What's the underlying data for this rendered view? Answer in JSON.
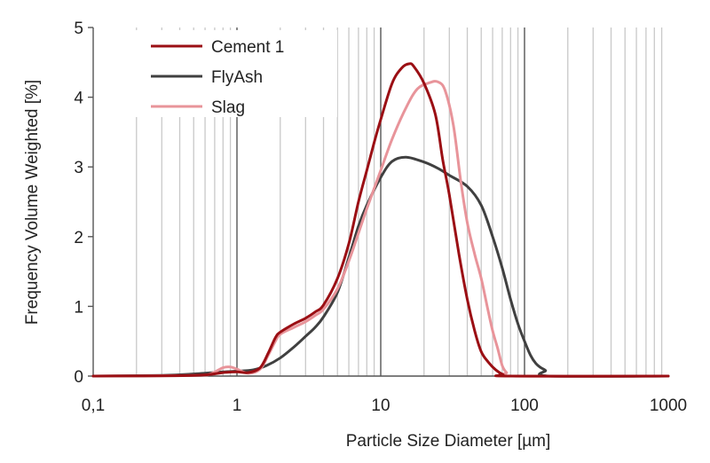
{
  "chart_data": {
    "type": "line",
    "title": "",
    "xlabel": "Particle Size Diameter [µm]",
    "ylabel": "Frequency Volume Weighted [%]",
    "x_scale": "log",
    "xlim": [
      0.1,
      1000
    ],
    "ylim": [
      0,
      5
    ],
    "x_ticks": [
      0.1,
      1,
      10,
      100,
      1000
    ],
    "x_tick_labels": [
      "0,1",
      "1",
      "10",
      "100",
      "1000"
    ],
    "y_ticks": [
      0,
      1,
      2,
      3,
      4,
      5
    ],
    "y_tick_labels": [
      "0",
      "1",
      "2",
      "3",
      "4",
      "5"
    ],
    "grid": "vertical log gridlines",
    "legend_position": "top-left",
    "series": [
      {
        "name": "Cement 1",
        "color": "#9b0f14",
        "points": [
          [
            0.1,
            0
          ],
          [
            0.5,
            0.01
          ],
          [
            0.8,
            0.05
          ],
          [
            1.0,
            0.06
          ],
          [
            1.2,
            0.05
          ],
          [
            1.45,
            0.12
          ],
          [
            1.65,
            0.33
          ],
          [
            1.85,
            0.55
          ],
          [
            2.0,
            0.63
          ],
          [
            2.5,
            0.75
          ],
          [
            3.0,
            0.83
          ],
          [
            3.5,
            0.92
          ],
          [
            4.0,
            1.02
          ],
          [
            5.0,
            1.4
          ],
          [
            6.0,
            1.9
          ],
          [
            7.0,
            2.5
          ],
          [
            8.0,
            2.95
          ],
          [
            9.0,
            3.35
          ],
          [
            10.0,
            3.68
          ],
          [
            12.0,
            4.2
          ],
          [
            14.0,
            4.42
          ],
          [
            15.8,
            4.48
          ],
          [
            17.0,
            4.44
          ],
          [
            20.0,
            4.2
          ],
          [
            24.0,
            3.75
          ],
          [
            27.0,
            3.1
          ],
          [
            30.0,
            2.6
          ],
          [
            35.0,
            1.75
          ],
          [
            40.0,
            1.1
          ],
          [
            45.0,
            0.65
          ],
          [
            50.0,
            0.35
          ],
          [
            56.0,
            0.2
          ],
          [
            63.0,
            0.09
          ],
          [
            71.0,
            0.02
          ],
          [
            78.0,
            0
          ],
          [
            1000,
            0
          ]
        ]
      },
      {
        "name": "FlyAsh",
        "color": "#404040",
        "points": [
          [
            0.1,
            0
          ],
          [
            0.3,
            0.01
          ],
          [
            0.5,
            0.03
          ],
          [
            0.8,
            0.06
          ],
          [
            1.0,
            0.07
          ],
          [
            1.3,
            0.09
          ],
          [
            1.6,
            0.15
          ],
          [
            2.0,
            0.26
          ],
          [
            2.5,
            0.42
          ],
          [
            3.0,
            0.57
          ],
          [
            3.5,
            0.7
          ],
          [
            4.0,
            0.85
          ],
          [
            5.0,
            1.2
          ],
          [
            6.0,
            1.7
          ],
          [
            7.0,
            2.15
          ],
          [
            8.0,
            2.45
          ],
          [
            10.0,
            2.85
          ],
          [
            12.0,
            3.08
          ],
          [
            15.0,
            3.14
          ],
          [
            20.0,
            3.07
          ],
          [
            25.0,
            2.98
          ],
          [
            30.0,
            2.88
          ],
          [
            40.0,
            2.72
          ],
          [
            50.0,
            2.45
          ],
          [
            60.0,
            2.0
          ],
          [
            70.0,
            1.55
          ],
          [
            80.0,
            1.1
          ],
          [
            90.0,
            0.75
          ],
          [
            100.0,
            0.5
          ],
          [
            110.0,
            0.3
          ],
          [
            120.0,
            0.18
          ],
          [
            130.0,
            0.12
          ],
          [
            140.0,
            0.08
          ],
          [
            148.0,
            0
          ],
          [
            1000,
            0
          ]
        ]
      },
      {
        "name": "Slag",
        "color": "#e8949a",
        "points": [
          [
            0.1,
            0
          ],
          [
            0.5,
            0.01
          ],
          [
            0.65,
            0.03
          ],
          [
            0.8,
            0.12
          ],
          [
            0.9,
            0.13
          ],
          [
            1.0,
            0.1
          ],
          [
            1.2,
            0.04
          ],
          [
            1.45,
            0.1
          ],
          [
            1.65,
            0.3
          ],
          [
            1.85,
            0.5
          ],
          [
            2.0,
            0.6
          ],
          [
            2.5,
            0.7
          ],
          [
            3.0,
            0.78
          ],
          [
            3.5,
            0.87
          ],
          [
            4.0,
            0.96
          ],
          [
            5.0,
            1.25
          ],
          [
            6.0,
            1.65
          ],
          [
            7.0,
            2.05
          ],
          [
            8.0,
            2.4
          ],
          [
            10.0,
            2.95
          ],
          [
            12.0,
            3.4
          ],
          [
            15.0,
            3.85
          ],
          [
            18.0,
            4.12
          ],
          [
            22.0,
            4.21
          ],
          [
            25.0,
            4.22
          ],
          [
            28.0,
            4.1
          ],
          [
            32.0,
            3.6
          ],
          [
            36.0,
            2.8
          ],
          [
            40.0,
            2.2
          ],
          [
            45.0,
            1.75
          ],
          [
            50.0,
            1.4
          ],
          [
            55.0,
            1.0
          ],
          [
            60.0,
            0.65
          ],
          [
            65.0,
            0.4
          ],
          [
            70.0,
            0.15
          ],
          [
            75.0,
            0.05
          ],
          [
            82.0,
            0
          ],
          [
            1000,
            0
          ]
        ]
      }
    ]
  }
}
